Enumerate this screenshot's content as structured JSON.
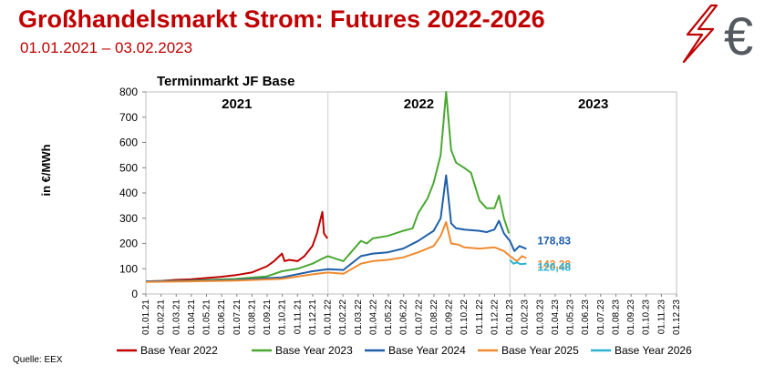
{
  "header": {
    "title": "Großhandelsmarkt Strom: Futures 2022-2026",
    "subtitle": "01.01.2021 – 03.02.2023"
  },
  "footer": {
    "source": "Quelle: EEX"
  },
  "logo": {
    "icon": "lightning-euro-icon",
    "symbol": "€",
    "colors": {
      "bolt": "#c00000",
      "euro": "#555a60"
    }
  },
  "chart_data": {
    "type": "line",
    "title": "Terminmarkt JF Base",
    "ylabel": "in €/MWh",
    "xlabel": "",
    "ylim": [
      0,
      800
    ],
    "yticks": [
      0,
      100,
      200,
      300,
      400,
      500,
      600,
      700,
      800
    ],
    "xlim": [
      "2021-01-01",
      "2023-12-01"
    ],
    "xtick_labels": [
      "01.01.21",
      "01.02.21",
      "01.03.21",
      "01.04.21",
      "01.05.21",
      "01.06.21",
      "01.07.21",
      "01.08.21",
      "01.09.21",
      "01.10.21",
      "01.11.21",
      "01.12.21",
      "01.01.22",
      "01.02.22",
      "01.03.22",
      "01.04.22",
      "01.05.22",
      "01.06.22",
      "01.07.22",
      "01.08.22",
      "01.09.22",
      "01.10.22",
      "01.11.22",
      "01.12.22",
      "01.01.23",
      "01.02.23",
      "01.03.23",
      "01.04.23",
      "01.05.23",
      "01.06.23",
      "01.07.23",
      "01.08.23",
      "01.09.23",
      "01.10.23",
      "01.11.23",
      "01.12.23"
    ],
    "year_labels": [
      {
        "text": "2021",
        "from": "2021-01-01",
        "to": "2022-01-01"
      },
      {
        "text": "2022",
        "from": "2022-01-01",
        "to": "2023-01-01"
      },
      {
        "text": "2023",
        "from": "2023-01-01",
        "to": "2023-12-01"
      }
    ],
    "grid": false,
    "legend_position": "bottom",
    "series": [
      {
        "name": "Base Year 2022",
        "color": "#c00000",
        "x": [
          "2021-01-01",
          "2021-02-01",
          "2021-03-01",
          "2021-04-01",
          "2021-05-01",
          "2021-06-01",
          "2021-07-01",
          "2021-08-01",
          "2021-09-01",
          "2021-09-15",
          "2021-10-01",
          "2021-10-06",
          "2021-10-15",
          "2021-11-01",
          "2021-11-15",
          "2021-12-01",
          "2021-12-10",
          "2021-12-21",
          "2021-12-24",
          "2021-12-31"
        ],
        "y": [
          50,
          52,
          56,
          58,
          63,
          68,
          75,
          85,
          110,
          130,
          160,
          130,
          135,
          130,
          150,
          190,
          240,
          325,
          240,
          220
        ]
      },
      {
        "name": "Base Year 2023",
        "color": "#4aa832",
        "x": [
          "2021-01-01",
          "2021-04-01",
          "2021-07-01",
          "2021-09-01",
          "2021-10-01",
          "2021-11-01",
          "2021-12-01",
          "2021-12-21",
          "2022-01-01",
          "2022-02-01",
          "2022-03-08",
          "2022-03-20",
          "2022-04-01",
          "2022-05-01",
          "2022-06-01",
          "2022-06-20",
          "2022-07-01",
          "2022-07-20",
          "2022-08-01",
          "2022-08-15",
          "2022-08-26",
          "2022-09-05",
          "2022-09-15",
          "2022-10-01",
          "2022-10-15",
          "2022-11-01",
          "2022-11-15",
          "2022-12-01",
          "2022-12-10",
          "2022-12-20",
          "2022-12-30"
        ],
        "y": [
          50,
          53,
          60,
          70,
          90,
          100,
          120,
          140,
          150,
          130,
          210,
          200,
          220,
          230,
          250,
          260,
          320,
          380,
          440,
          550,
          800,
          570,
          520,
          500,
          480,
          370,
          340,
          340,
          390,
          300,
          240
        ]
      },
      {
        "name": "Base Year 2024",
        "color": "#1f5fa8",
        "x": [
          "2021-01-01",
          "2021-04-01",
          "2021-07-01",
          "2021-10-01",
          "2021-12-01",
          "2022-01-01",
          "2022-02-01",
          "2022-03-08",
          "2022-04-01",
          "2022-05-01",
          "2022-06-01",
          "2022-07-01",
          "2022-07-20",
          "2022-08-01",
          "2022-08-15",
          "2022-08-26",
          "2022-09-05",
          "2022-09-15",
          "2022-10-01",
          "2022-11-01",
          "2022-11-15",
          "2022-12-01",
          "2022-12-10",
          "2022-12-20",
          "2023-01-01",
          "2023-01-10",
          "2023-01-20",
          "2023-02-03"
        ],
        "y": [
          50,
          52,
          56,
          66,
          90,
          98,
          95,
          150,
          160,
          165,
          180,
          210,
          235,
          250,
          300,
          470,
          280,
          260,
          255,
          250,
          245,
          255,
          290,
          240,
          210,
          170,
          190,
          178.83
        ]
      },
      {
        "name": "Base Year 2025",
        "color": "#ef8a2e",
        "x": [
          "2021-01-01",
          "2021-04-01",
          "2021-07-01",
          "2021-10-01",
          "2021-12-01",
          "2022-01-01",
          "2022-02-01",
          "2022-03-08",
          "2022-04-01",
          "2022-05-01",
          "2022-06-01",
          "2022-07-01",
          "2022-08-01",
          "2022-08-15",
          "2022-08-26",
          "2022-09-05",
          "2022-09-20",
          "2022-10-01",
          "2022-11-01",
          "2022-12-01",
          "2022-12-20",
          "2023-01-01",
          "2023-01-15",
          "2023-01-25",
          "2023-02-03"
        ],
        "y": [
          48,
          50,
          53,
          60,
          78,
          85,
          80,
          120,
          130,
          135,
          145,
          165,
          190,
          230,
          285,
          200,
          195,
          185,
          180,
          185,
          170,
          150,
          130,
          150,
          142.28
        ]
      },
      {
        "name": "Base Year 2026",
        "color": "#2ab3d5",
        "x": [
          "2023-01-01",
          "2023-01-08",
          "2023-01-15",
          "2023-01-22",
          "2023-02-03"
        ],
        "y": [
          135,
          120,
          125,
          118,
          120.48
        ]
      }
    ],
    "end_labels": [
      {
        "text": "178,83",
        "series": "Base Year 2024",
        "color": "#1f5fa8"
      },
      {
        "text": "142,28",
        "series": "Base Year 2025",
        "color": "#ef8a2e"
      },
      {
        "text": "120,48",
        "series": "Base Year 2026",
        "color": "#2ab3d5"
      }
    ]
  }
}
